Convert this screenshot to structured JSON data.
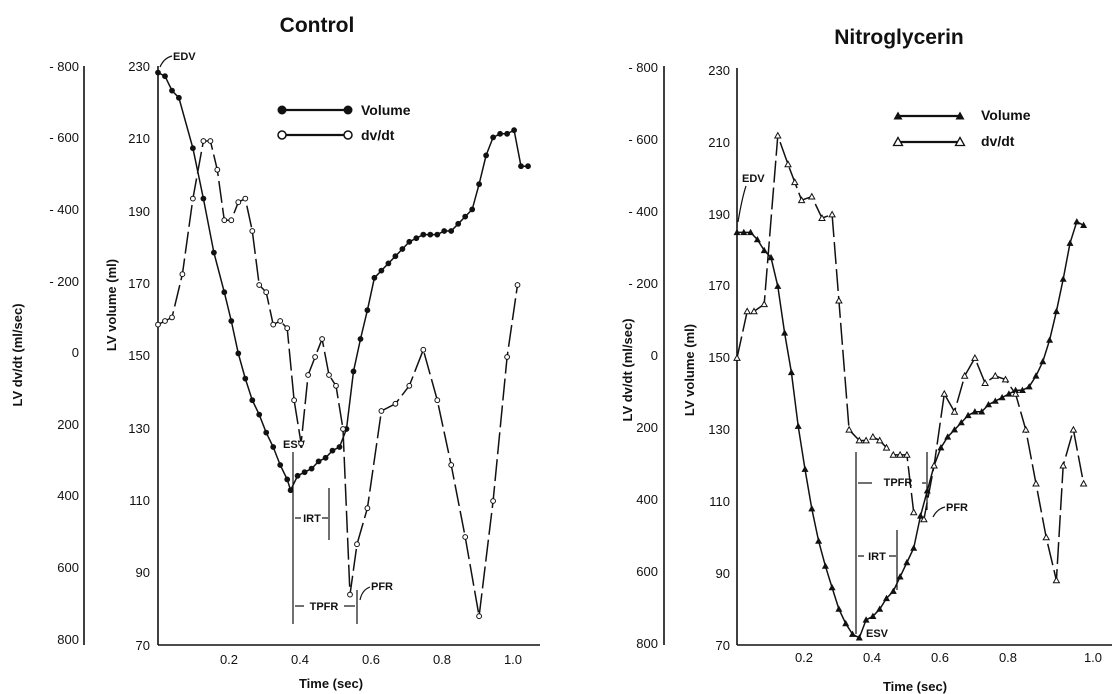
{
  "chart_data": [
    {
      "type": "line",
      "title": "Control",
      "xlabel": "Time (sec)",
      "ylabel_left": "LV  dv/dt (ml/sec)",
      "ylabel_right": "LV  volume (ml)",
      "xlim": [
        0,
        1.08
      ],
      "ylim_volume": [
        70,
        230
      ],
      "ylim_dvdt": [
        800,
        -800
      ],
      "x_ticks": [
        "0.2",
        "0.4",
        "0.6",
        "0.8",
        "1.0"
      ],
      "dvdt_ticks": [
        "- 800",
        "- 600",
        "- 400",
        "- 200",
        "0",
        "200",
        "400",
        "600",
        "800"
      ],
      "volume_ticks": [
        "230",
        "210",
        "190",
        "170",
        "150",
        "130",
        "110",
        "90",
        "70"
      ],
      "series": [
        {
          "name": "Volume",
          "marker": "filled-circle",
          "dash": "solid",
          "x": [
            0,
            0.02,
            0.04,
            0.06,
            0.1,
            0.13,
            0.16,
            0.19,
            0.21,
            0.23,
            0.25,
            0.27,
            0.29,
            0.31,
            0.33,
            0.35,
            0.37,
            0.38,
            0.4,
            0.42,
            0.44,
            0.46,
            0.48,
            0.5,
            0.52,
            0.54,
            0.56,
            0.58,
            0.6,
            0.62,
            0.64,
            0.66,
            0.68,
            0.7,
            0.72,
            0.74,
            0.76,
            0.78,
            0.8,
            0.82,
            0.84,
            0.86,
            0.88,
            0.9,
            0.92,
            0.94,
            0.96,
            0.98,
            1.0,
            1.02,
            1.04,
            1.06
          ],
          "values": [
            229,
            228,
            224,
            222,
            208,
            194,
            179,
            168,
            160,
            151,
            144,
            138,
            134,
            129,
            125,
            120,
            116,
            113,
            117,
            118,
            119,
            121,
            122,
            124,
            125,
            130,
            146,
            155,
            163,
            172,
            174,
            176,
            178,
            180,
            182,
            183,
            184,
            184,
            184,
            185,
            185,
            187,
            189,
            191,
            198,
            206,
            211,
            212,
            212,
            213,
            203,
            203
          ]
        },
        {
          "name": "dv/dt",
          "marker": "open-circle",
          "dash": "dashed",
          "x": [
            0,
            0.02,
            0.04,
            0.07,
            0.1,
            0.13,
            0.15,
            0.17,
            0.19,
            0.21,
            0.23,
            0.25,
            0.27,
            0.29,
            0.31,
            0.33,
            0.35,
            0.37,
            0.39,
            0.41,
            0.43,
            0.45,
            0.47,
            0.49,
            0.51,
            0.53,
            0.55,
            0.57,
            0.6,
            0.64,
            0.68,
            0.72,
            0.76,
            0.8,
            0.84,
            0.88,
            0.92,
            0.96,
            1.0,
            1.03
          ],
          "values": [
            -90,
            -100,
            -110,
            -230,
            -440,
            -600,
            -600,
            -520,
            -380,
            -380,
            -430,
            -440,
            -350,
            -200,
            -180,
            -90,
            -100,
            -80,
            120,
            240,
            50,
            0,
            -50,
            50,
            80,
            200,
            660,
            520,
            420,
            150,
            130,
            80,
            -20,
            120,
            300,
            500,
            720,
            400,
            0,
            -200
          ]
        }
      ],
      "annotations": [
        "EDV",
        "ESV",
        "IRT",
        "TPFR",
        "PFR"
      ]
    },
    {
      "type": "line",
      "title": "Nitroglycerin",
      "xlabel": "Time (sec)",
      "ylabel_left": "LV  dv/dt (ml/sec)",
      "ylabel_right": "LV  volume (ml)",
      "xlim": [
        0,
        1.08
      ],
      "ylim_volume": [
        70,
        230
      ],
      "ylim_dvdt": [
        800,
        -800
      ],
      "x_ticks": [
        "0.2",
        "0.4",
        "0.6",
        "0.8",
        "1.0"
      ],
      "dvdt_ticks": [
        "- 800",
        "- 600",
        "- 400",
        "- 200",
        "0",
        "200",
        "400",
        "600",
        "800"
      ],
      "volume_ticks": [
        "230",
        "210",
        "190",
        "170",
        "150",
        "130",
        "110",
        "90",
        "70"
      ],
      "series": [
        {
          "name": "Volume",
          "marker": "filled-triangle",
          "dash": "solid",
          "x": [
            0,
            0.02,
            0.04,
            0.06,
            0.08,
            0.1,
            0.12,
            0.14,
            0.16,
            0.18,
            0.2,
            0.22,
            0.24,
            0.26,
            0.28,
            0.3,
            0.32,
            0.34,
            0.36,
            0.38,
            0.4,
            0.42,
            0.44,
            0.46,
            0.48,
            0.5,
            0.52,
            0.54,
            0.56,
            0.58,
            0.6,
            0.62,
            0.64,
            0.66,
            0.68,
            0.7,
            0.72,
            0.74,
            0.76,
            0.78,
            0.8,
            0.82,
            0.84,
            0.86,
            0.88,
            0.9,
            0.92,
            0.94,
            0.96,
            0.98,
            1.0,
            1.02
          ],
          "values": [
            185,
            185,
            185,
            183,
            180,
            178,
            170,
            157,
            146,
            131,
            119,
            108,
            99,
            92,
            86,
            80,
            76,
            73,
            72,
            77,
            78,
            80,
            83,
            85,
            89,
            93,
            97,
            106,
            113,
            120,
            125,
            128,
            130,
            132,
            134,
            135,
            135,
            137,
            138,
            139,
            140,
            141,
            141,
            142,
            145,
            149,
            155,
            163,
            172,
            182,
            188,
            187
          ]
        },
        {
          "name": "dv/dt",
          "marker": "open-triangle",
          "dash": "dashed",
          "x": [
            0,
            0.03,
            0.05,
            0.08,
            0.12,
            0.15,
            0.17,
            0.19,
            0.22,
            0.25,
            0.28,
            0.3,
            0.33,
            0.36,
            0.38,
            0.4,
            0.42,
            0.44,
            0.46,
            0.48,
            0.5,
            0.52,
            0.55,
            0.58,
            0.61,
            0.64,
            0.67,
            0.7,
            0.73,
            0.76,
            0.79,
            0.82,
            0.85,
            0.88,
            0.91,
            0.94,
            0.96,
            0.99,
            1.02
          ],
          "values": [
            0,
            -130,
            -130,
            -150,
            -620,
            -540,
            -490,
            -440,
            -450,
            -390,
            -400,
            -160,
            200,
            230,
            230,
            220,
            230,
            250,
            270,
            270,
            270,
            430,
            450,
            300,
            100,
            150,
            50,
            0,
            70,
            50,
            60,
            100,
            200,
            350,
            500,
            620,
            300,
            200,
            350
          ]
        }
      ],
      "annotations": [
        "EDV",
        "ESV",
        "IRT",
        "TPFR",
        "PFR"
      ]
    }
  ]
}
